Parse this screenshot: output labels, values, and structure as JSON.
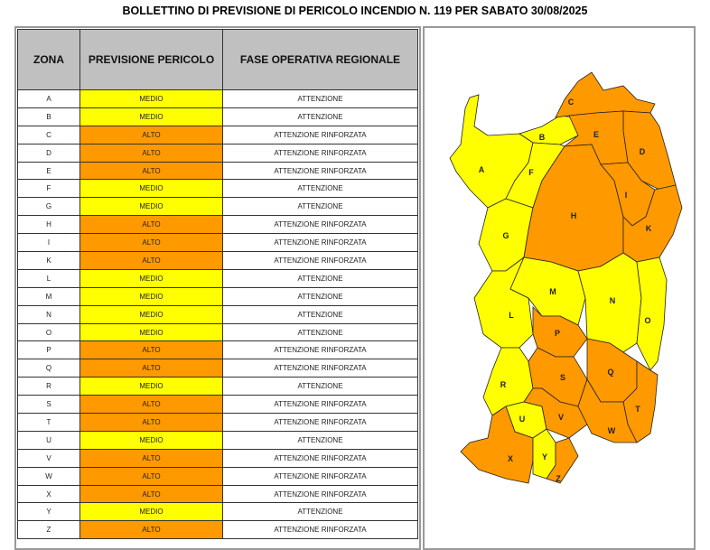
{
  "title": "BOLLETTINO DI PREVISIONE DI PERICOLO INCENDIO N. 119 PER SABATO 30/08/2025",
  "colors": {
    "MEDIO": "#ffff00",
    "ALTO": "#ff9900",
    "header": "#c0c0c0"
  },
  "table": {
    "headers": [
      "ZONA",
      "PREVISIONE PERICOLO",
      "FASE OPERATIVA REGIONALE"
    ],
    "rows": [
      {
        "zona": "A",
        "pericolo": "MEDIO",
        "fase": "ATTENZIONE"
      },
      {
        "zona": "B",
        "pericolo": "MEDIO",
        "fase": "ATTENZIONE"
      },
      {
        "zona": "C",
        "pericolo": "ALTO",
        "fase": "ATTENZIONE RINFORZATA"
      },
      {
        "zona": "D",
        "pericolo": "ALTO",
        "fase": "ATTENZIONE RINFORZATA"
      },
      {
        "zona": "E",
        "pericolo": "ALTO",
        "fase": "ATTENZIONE RINFORZATA"
      },
      {
        "zona": "F",
        "pericolo": "MEDIO",
        "fase": "ATTENZIONE"
      },
      {
        "zona": "G",
        "pericolo": "MEDIO",
        "fase": "ATTENZIONE"
      },
      {
        "zona": "H",
        "pericolo": "ALTO",
        "fase": "ATTENZIONE RINFORZATA"
      },
      {
        "zona": "I",
        "pericolo": "ALTO",
        "fase": "ATTENZIONE RINFORZATA"
      },
      {
        "zona": "K",
        "pericolo": "ALTO",
        "fase": "ATTENZIONE RINFORZATA"
      },
      {
        "zona": "L",
        "pericolo": "MEDIO",
        "fase": "ATTENZIONE"
      },
      {
        "zona": "M",
        "pericolo": "MEDIO",
        "fase": "ATTENZIONE"
      },
      {
        "zona": "N",
        "pericolo": "MEDIO",
        "fase": "ATTENZIONE"
      },
      {
        "zona": "O",
        "pericolo": "MEDIO",
        "fase": "ATTENZIONE"
      },
      {
        "zona": "P",
        "pericolo": "ALTO",
        "fase": "ATTENZIONE RINFORZATA"
      },
      {
        "zona": "Q",
        "pericolo": "ALTO",
        "fase": "ATTENZIONE RINFORZATA"
      },
      {
        "zona": "R",
        "pericolo": "MEDIO",
        "fase": "ATTENZIONE"
      },
      {
        "zona": "S",
        "pericolo": "ALTO",
        "fase": "ATTENZIONE RINFORZATA"
      },
      {
        "zona": "T",
        "pericolo": "ALTO",
        "fase": "ATTENZIONE RINFORZATA"
      },
      {
        "zona": "U",
        "pericolo": "MEDIO",
        "fase": "ATTENZIONE"
      },
      {
        "zona": "V",
        "pericolo": "ALTO",
        "fase": "ATTENZIONE RINFORZATA"
      },
      {
        "zona": "W",
        "pericolo": "ALTO",
        "fase": "ATTENZIONE RINFORZATA"
      },
      {
        "zona": "X",
        "pericolo": "ALTO",
        "fase": "ATTENZIONE RINFORZATA"
      },
      {
        "zona": "Y",
        "pericolo": "MEDIO",
        "fase": "ATTENZIONE"
      },
      {
        "zona": "Z",
        "pericolo": "ALTO",
        "fase": "ATTENZIONE RINFORZATA"
      }
    ]
  }
}
